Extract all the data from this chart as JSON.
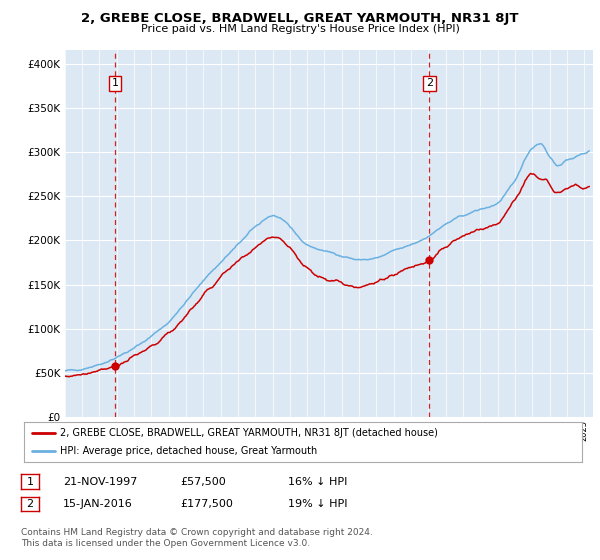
{
  "title": "2, GREBE CLOSE, BRADWELL, GREAT YARMOUTH, NR31 8JT",
  "subtitle": "Price paid vs. HM Land Registry's House Price Index (HPI)",
  "ylabel_ticks": [
    "£0",
    "£50K",
    "£100K",
    "£150K",
    "£200K",
    "£250K",
    "£300K",
    "£350K",
    "£400K"
  ],
  "ytick_vals": [
    0,
    50000,
    100000,
    150000,
    200000,
    250000,
    300000,
    350000,
    400000
  ],
  "ylim": [
    0,
    415000
  ],
  "xlim_start": 1995.0,
  "xlim_end": 2025.5,
  "purchase1": {
    "date_num": 1997.9,
    "price": 57500,
    "label": "1"
  },
  "purchase2": {
    "date_num": 2016.05,
    "price": 177500,
    "label": "2"
  },
  "legend_line1": "2, GREBE CLOSE, BRADWELL, GREAT YARMOUTH, NR31 8JT (detached house)",
  "legend_line2": "HPI: Average price, detached house, Great Yarmouth",
  "table_row1": [
    "1",
    "21-NOV-1997",
    "£57,500",
    "16% ↓ HPI"
  ],
  "table_row2": [
    "2",
    "15-JAN-2016",
    "£177,500",
    "19% ↓ HPI"
  ],
  "footer": "Contains HM Land Registry data © Crown copyright and database right 2024.\nThis data is licensed under the Open Government Licence v3.0.",
  "hpi_color": "#6ab0e0",
  "price_color": "#cc0000",
  "bg_color": "#dce9f5",
  "grid_color": "#ffffff",
  "vline_color": "#cc0000",
  "box_color": "#cc0000",
  "title_fontsize": 9.5,
  "subtitle_fontsize": 8.0
}
